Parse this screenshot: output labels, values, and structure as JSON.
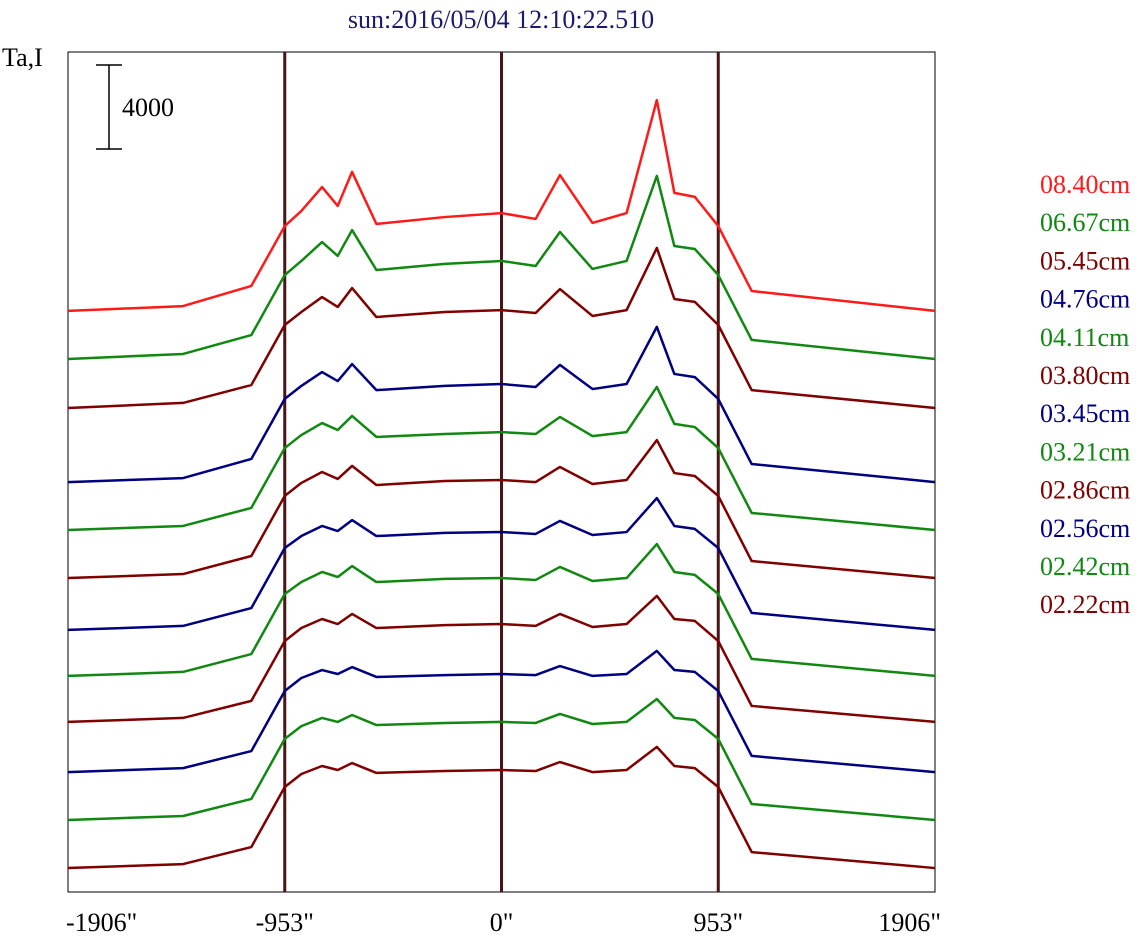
{
  "chart_data": {
    "type": "line",
    "title": "sun:2016/05/04 12:10:22.510",
    "y_label": "Ta,I",
    "scale_bar": 4000,
    "x": [
      -1906,
      -1400,
      -1100,
      -953,
      -880,
      -789,
      -720,
      -657,
      -550,
      -250,
      0,
      150,
      257,
      400,
      550,
      683,
      760,
      850,
      953,
      1100,
      1906
    ],
    "xlim": [
      -1906,
      1906
    ],
    "xticks": [
      {
        "value": -1906,
        "label": "-1906\""
      },
      {
        "value": -953,
        "label": "-953\""
      },
      {
        "value": 0,
        "label": "0\""
      },
      {
        "value": 953,
        "label": "953\""
      },
      {
        "value": 1906,
        "label": "1906\""
      }
    ],
    "reference_lines": [
      -953,
      0,
      953
    ],
    "ylim": [
      0,
      40000
    ],
    "series": [
      {
        "name": "08.40cm",
        "color": "#ff1a1a",
        "values": [
          27670,
          27900,
          28860,
          31710,
          32430,
          33570,
          32670,
          34290,
          31810,
          32140,
          32330,
          32050,
          34140,
          31860,
          32330,
          37710,
          33290,
          33100,
          31710,
          28620,
          27670
        ]
      },
      {
        "name": "06.67cm",
        "color": "#118811",
        "values": [
          25380,
          25620,
          26520,
          29380,
          30050,
          30950,
          30290,
          31520,
          29620,
          29910,
          30050,
          29810,
          31430,
          29670,
          30050,
          34100,
          30760,
          30620,
          29380,
          26290,
          25380
        ]
      },
      {
        "name": "05.45cm",
        "color": "#800000",
        "values": [
          23050,
          23290,
          24140,
          27000,
          27620,
          28330,
          27860,
          28760,
          27380,
          27620,
          27710,
          27570,
          28710,
          27430,
          27710,
          30670,
          28240,
          28100,
          27000,
          23900,
          23050
        ]
      },
      {
        "name": "04.76cm",
        "color": "#000080",
        "values": [
          19520,
          19710,
          20620,
          23480,
          24100,
          24760,
          24330,
          25140,
          23900,
          24100,
          24190,
          24050,
          25100,
          23950,
          24190,
          26910,
          24670,
          24520,
          23480,
          20380,
          19520
        ]
      },
      {
        "name": "04.11cm",
        "color": "#118811",
        "values": [
          17240,
          17430,
          18290,
          21140,
          21760,
          22330,
          22000,
          22670,
          21670,
          21810,
          21900,
          21810,
          22620,
          21710,
          21900,
          24050,
          22290,
          22140,
          21140,
          18050,
          17240
        ]
      },
      {
        "name": "03.80cm",
        "color": "#800000",
        "values": [
          14950,
          15140,
          16000,
          18860,
          19480,
          20000,
          19670,
          20290,
          19380,
          19570,
          19620,
          19520,
          20240,
          19430,
          19620,
          21520,
          19950,
          19810,
          18860,
          15760,
          14950
        ]
      },
      {
        "name": "03.45cm",
        "color": "#000080",
        "values": [
          12480,
          12670,
          13520,
          16380,
          16950,
          17430,
          17190,
          17710,
          16950,
          17100,
          17140,
          17050,
          17670,
          17000,
          17140,
          18760,
          17430,
          17290,
          16380,
          13290,
          12480
        ]
      },
      {
        "name": "03.21cm",
        "color": "#118811",
        "values": [
          10290,
          10480,
          11330,
          14190,
          14760,
          15240,
          15000,
          15520,
          14760,
          14910,
          14950,
          14860,
          15480,
          14810,
          14950,
          16570,
          15240,
          15100,
          14190,
          11100,
          10290
        ]
      },
      {
        "name": "02.86cm",
        "color": "#800000",
        "values": [
          8100,
          8290,
          9100,
          11950,
          12570,
          13000,
          12760,
          13240,
          12570,
          12710,
          12760,
          12670,
          13240,
          12620,
          12760,
          14100,
          13000,
          12910,
          11950,
          8860,
          8100
        ]
      },
      {
        "name": "02.56cm",
        "color": "#000080",
        "values": [
          5710,
          5900,
          6710,
          9570,
          10190,
          10570,
          10380,
          10710,
          10240,
          10330,
          10380,
          10330,
          10760,
          10290,
          10380,
          11480,
          10570,
          10480,
          9570,
          6480,
          5710
        ]
      },
      {
        "name": "02.42cm",
        "color": "#118811",
        "values": [
          3430,
          3620,
          4430,
          7290,
          7900,
          8290,
          8100,
          8430,
          7950,
          8050,
          8100,
          8050,
          8480,
          8000,
          8100,
          9190,
          8290,
          8190,
          7290,
          4190,
          3430
        ]
      },
      {
        "name": "02.22cm",
        "color": "#800000",
        "values": [
          1140,
          1330,
          2140,
          5000,
          5620,
          6000,
          5810,
          6140,
          5670,
          5760,
          5810,
          5760,
          6190,
          5710,
          5810,
          6910,
          6000,
          5900,
          5000,
          1900,
          1140
        ]
      }
    ]
  }
}
